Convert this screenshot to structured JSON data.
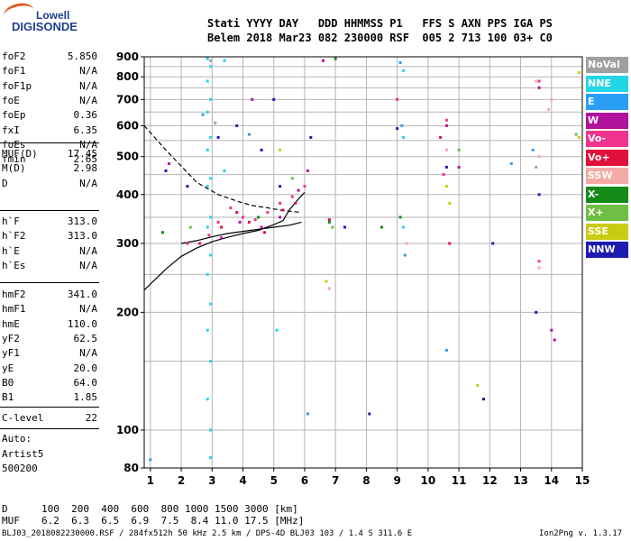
{
  "logo": {
    "top": "Lowell",
    "bottom": "DIGISONDE"
  },
  "header": {
    "line1": "Stati YYYY DAY   DDD HHMMSS P1   FFS S AXN PPS IGA PS",
    "line2": "Belem 2018 Mar23 082 230000 RSF  005 2 713 100 03+ C0"
  },
  "params_a": [
    {
      "name": "foF2",
      "value": "5.850"
    },
    {
      "name": "foF1",
      "value": "N/A"
    },
    {
      "name": "foF1p",
      "value": "N/A"
    },
    {
      "name": "foE",
      "value": "N/A"
    },
    {
      "name": "foEp",
      "value": "0.36"
    },
    {
      "name": "fxI",
      "value": "6.35"
    },
    {
      "name": "foEs",
      "value": "N/A"
    },
    {
      "name": "fmin",
      "value": "2.65"
    }
  ],
  "params_b": [
    {
      "name": "MUF(D)",
      "value": "17.45"
    },
    {
      "name": "M(D)",
      "value": "2.98"
    },
    {
      "name": "D",
      "value": "N/A"
    }
  ],
  "params_c": [
    {
      "name": "h`F",
      "value": "313.0"
    },
    {
      "name": "h`F2",
      "value": "313.0"
    },
    {
      "name": "h`E",
      "value": "N/A"
    },
    {
      "name": "h`Es",
      "value": "N/A"
    }
  ],
  "params_d": [
    {
      "name": "hmF2",
      "value": "341.0"
    },
    {
      "name": "hmF1",
      "value": "N/A"
    },
    {
      "name": "hmE",
      "value": "110.0"
    },
    {
      "name": "yF2",
      "value": "62.5"
    },
    {
      "name": "yF1",
      "value": "N/A"
    },
    {
      "name": "yE",
      "value": "20.0"
    },
    {
      "name": "B0",
      "value": "64.0"
    },
    {
      "name": "B1",
      "value": "1.85"
    }
  ],
  "clevel": {
    "name": "C-level",
    "value": "22"
  },
  "auto": {
    "line1": "Auto:",
    "line2": "Artist5",
    "line3": "500200"
  },
  "legend": [
    {
      "label": "NoVal",
      "color": "#a0a0a0"
    },
    {
      "label": "NNE",
      "color": "#22d6e6"
    },
    {
      "label": "E",
      "color": "#2a9df4"
    },
    {
      "label": "W",
      "color": "#b2119e"
    },
    {
      "label": "Vo-",
      "color": "#f0338e"
    },
    {
      "label": "Vo+",
      "color": "#e0103a"
    },
    {
      "label": "SSW",
      "color": "#f4aaa6"
    },
    {
      "label": "X-",
      "color": "#148a18"
    },
    {
      "label": "X+",
      "color": "#6fbf45"
    },
    {
      "label": "SSE",
      "color": "#c9cc12"
    },
    {
      "label": "NNW",
      "color": "#1c1cb0"
    }
  ],
  "muf_table": {
    "d_label": "D",
    "d_values": "100  200  400  600  800 1000 1500 3000 [km]",
    "muf_label": "MUF",
    "muf_values": "6.2  6.3  6.5  6.9  7.5  8.4 11.0 17.5 [MHz]"
  },
  "footer": {
    "left": "BLJ03_2018082230000.RSF / 284fx512h 50 kHz 2.5 km / DPS-4D BLJ03 103 / 1.4 S 311.6 E",
    "right": "Ion2Png v. 1.3.17"
  },
  "chart_data": {
    "type": "scatter",
    "title": "",
    "xlabel": "",
    "ylabel": "",
    "xlim": [
      0.8,
      15.0
    ],
    "ylim": [
      80,
      900
    ],
    "x_ticks": [
      1,
      2,
      3,
      4,
      5,
      6,
      7,
      8,
      9,
      10,
      11,
      12,
      13,
      14,
      15
    ],
    "y_ticks": [
      80,
      100,
      200,
      300,
      400,
      500,
      600,
      700,
      800,
      900
    ],
    "y_scale": "log",
    "grid": true,
    "legend_position": "right",
    "series": [
      {
        "name": "NoVal",
        "color": "#a0a0a0",
        "points": [
          [
            2.95,
            880
          ],
          [
            3.1,
            610
          ],
          [
            9.2,
            330
          ],
          [
            13.5,
            470
          ]
        ]
      },
      {
        "name": "NNE",
        "color": "#22d6e6",
        "points": [
          [
            2.85,
            890
          ],
          [
            2.85,
            780
          ],
          [
            2.85,
            650
          ],
          [
            2.85,
            520
          ],
          [
            2.85,
            420
          ],
          [
            2.85,
            330
          ],
          [
            2.85,
            250
          ],
          [
            2.85,
            180
          ],
          [
            2.85,
            120
          ],
          [
            2.95,
            850
          ],
          [
            2.95,
            700
          ],
          [
            2.95,
            560
          ],
          [
            2.95,
            440
          ],
          [
            2.95,
            350
          ],
          [
            2.95,
            280
          ],
          [
            2.95,
            210
          ],
          [
            2.95,
            150
          ],
          [
            2.95,
            100
          ],
          [
            2.95,
            85
          ],
          [
            9.2,
            830
          ],
          [
            9.2,
            560
          ],
          [
            9.2,
            330
          ],
          [
            5.1,
            180
          ],
          [
            3.4,
            460
          ],
          [
            3.4,
            880
          ]
        ]
      },
      {
        "name": "E",
        "color": "#2a9df4",
        "points": [
          [
            1.0,
            84
          ],
          [
            2.7,
            640
          ],
          [
            9.1,
            870
          ],
          [
            9.15,
            600
          ],
          [
            9.25,
            280
          ],
          [
            4.2,
            570
          ],
          [
            13.4,
            520
          ],
          [
            12.7,
            480
          ],
          [
            6.1,
            110
          ],
          [
            10.6,
            160
          ]
        ]
      },
      {
        "name": "W",
        "color": "#b2119e",
        "points": [
          [
            3.3,
            310
          ],
          [
            3.9,
            340
          ],
          [
            4.6,
            330
          ],
          [
            5.2,
            350
          ],
          [
            5.8,
            410
          ],
          [
            6.1,
            460
          ],
          [
            6.6,
            880
          ],
          [
            10.6,
            600
          ],
          [
            11.0,
            470
          ],
          [
            13.6,
            750
          ],
          [
            14.0,
            180
          ],
          [
            14.1,
            170
          ],
          [
            1.6,
            480
          ],
          [
            4.3,
            700
          ]
        ]
      },
      {
        "name": "Vo-",
        "color": "#f0338e",
        "points": [
          [
            2.9,
            315
          ],
          [
            3.2,
            340
          ],
          [
            3.6,
            370
          ],
          [
            4.0,
            350
          ],
          [
            4.4,
            345
          ],
          [
            4.8,
            360
          ],
          [
            5.2,
            380
          ],
          [
            5.6,
            395
          ],
          [
            6.0,
            420
          ],
          [
            2.2,
            300
          ],
          [
            10.5,
            450
          ],
          [
            10.6,
            620
          ],
          [
            13.6,
            270
          ],
          [
            13.6,
            780
          ],
          [
            9.0,
            700
          ]
        ]
      },
      {
        "name": "Vo+",
        "color": "#e0103a",
        "points": [
          [
            2.6,
            300
          ],
          [
            3.3,
            330
          ],
          [
            3.8,
            360
          ],
          [
            4.2,
            340
          ],
          [
            4.7,
            320
          ],
          [
            5.3,
            365
          ],
          [
            5.7,
            380
          ],
          [
            10.4,
            560
          ],
          [
            10.7,
            300
          ],
          [
            6.8,
            345
          ]
        ]
      },
      {
        "name": "SSW",
        "color": "#f4aaa6",
        "points": [
          [
            13.5,
            780
          ],
          [
            13.6,
            500
          ],
          [
            13.6,
            260
          ],
          [
            13.9,
            660
          ],
          [
            14.0,
            700
          ],
          [
            6.8,
            230
          ],
          [
            10.6,
            520
          ],
          [
            9.3,
            300
          ]
        ]
      },
      {
        "name": "X-",
        "color": "#148a18",
        "points": [
          [
            6.8,
            340
          ],
          [
            8.5,
            330
          ],
          [
            9.1,
            350
          ],
          [
            7.0,
            890
          ],
          [
            1.4,
            320
          ],
          [
            4.5,
            350
          ]
        ]
      },
      {
        "name": "X+",
        "color": "#6fbf45",
        "points": [
          [
            6.9,
            330
          ],
          [
            11.0,
            520
          ],
          [
            5.6,
            440
          ],
          [
            2.3,
            330
          ],
          [
            14.8,
            570
          ]
        ]
      },
      {
        "name": "SSE",
        "color": "#c9cc12",
        "points": [
          [
            10.6,
            420
          ],
          [
            10.7,
            380
          ],
          [
            5.2,
            520
          ],
          [
            6.7,
            240
          ],
          [
            14.9,
            820
          ],
          [
            14.9,
            560
          ],
          [
            11.6,
            130
          ]
        ]
      },
      {
        "name": "NNW",
        "color": "#1c1cb0",
        "points": [
          [
            1.5,
            460
          ],
          [
            2.2,
            420
          ],
          [
            3.2,
            560
          ],
          [
            3.8,
            600
          ],
          [
            5.0,
            700
          ],
          [
            5.2,
            420
          ],
          [
            6.2,
            560
          ],
          [
            7.3,
            330
          ],
          [
            9.0,
            590
          ],
          [
            10.6,
            470
          ],
          [
            11.8,
            120
          ],
          [
            12.1,
            300
          ],
          [
            13.6,
            400
          ],
          [
            13.5,
            200
          ],
          [
            8.1,
            110
          ],
          [
            4.6,
            520
          ]
        ]
      }
    ],
    "traces": [
      {
        "name": "ordinary",
        "style": "solid",
        "x": [
          0.8,
          1.5,
          2.0,
          2.5,
          3.0,
          3.5,
          4.0,
          4.5,
          5.0,
          5.3,
          5.5,
          5.8,
          6.0
        ],
        "y": [
          228,
          258,
          278,
          292,
          303,
          311,
          318,
          324,
          335,
          343,
          365,
          390,
          405
        ]
      },
      {
        "name": "ordinary-lower",
        "style": "solid",
        "x": [
          2.0,
          2.5,
          3.0,
          3.5,
          4.0,
          4.5,
          5.0,
          5.5,
          5.9
        ],
        "y": [
          300,
          305,
          312,
          318,
          322,
          326,
          330,
          334,
          340
        ]
      },
      {
        "name": "model",
        "style": "dashed",
        "x": [
          0.8,
          1.5,
          2.5,
          3.2,
          3.8,
          4.3,
          4.8,
          5.2,
          5.6,
          5.9
        ],
        "y": [
          600,
          520,
          430,
          400,
          385,
          375,
          370,
          365,
          362,
          360
        ]
      }
    ]
  }
}
